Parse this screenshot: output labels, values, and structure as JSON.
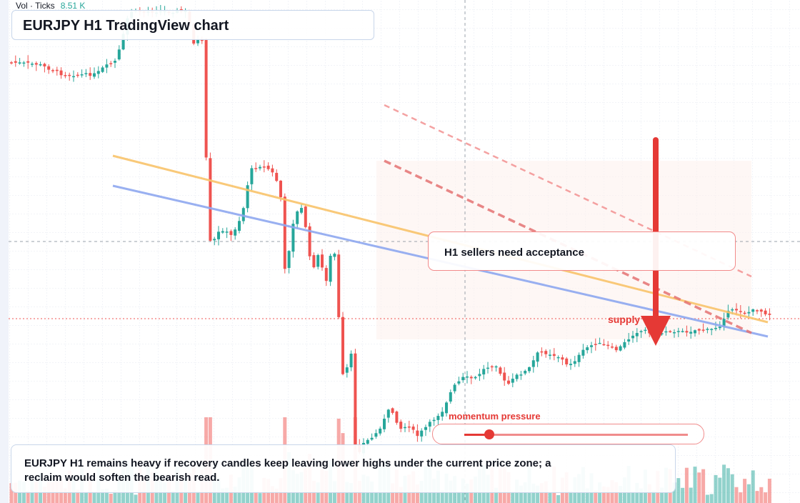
{
  "chart": {
    "title": "EURJPY H1 TradingView chart",
    "volume_legend": {
      "label": "Vol · Ticks",
      "value": "8.51 K"
    },
    "callout": "H1 sellers need acceptance",
    "supply_label": "supply",
    "momentum": {
      "label": "momentum pressure",
      "level": 0.11
    },
    "footer_note": "EURJPY H1 remains heavy if recovery candles keep leaving lower highs under the current price zone; a reclaim would soften the bearish read.",
    "colors": {
      "up": "#26a69a",
      "down": "#ef5350",
      "accent_red": "#e53935",
      "yellow_trendline": "#f9c46b",
      "blue_trendline": "#8ea8f0"
    },
    "icons": [
      "down-arrow-icon"
    ]
  }
}
